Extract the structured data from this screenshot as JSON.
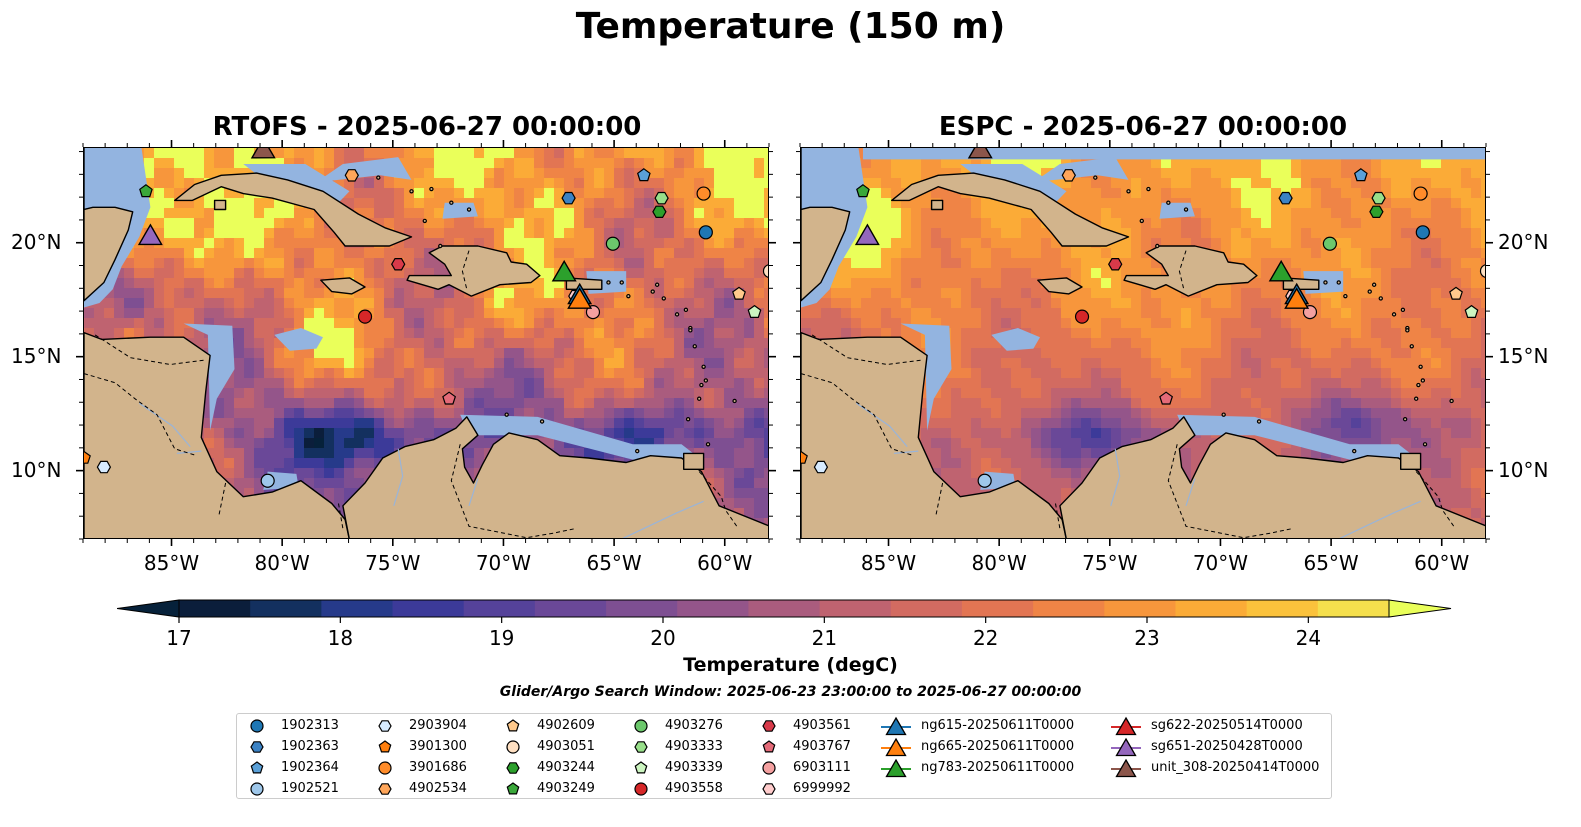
{
  "title": "Temperature (150 m)",
  "panels": [
    {
      "title": "RTOFS - 2025-06-27 00:00:00"
    },
    {
      "title": "ESPC - 2025-06-27 00:00:00"
    }
  ],
  "lon_ticks": [
    "85°W",
    "80°W",
    "75°W",
    "70°W",
    "65°W",
    "60°W"
  ],
  "lat_ticks": [
    "20°N",
    "15°N",
    "10°N"
  ],
  "colorbar": {
    "label": "Temperature (degC)",
    "ticks": [
      "17",
      "18",
      "19",
      "20",
      "21",
      "22",
      "23",
      "24"
    ],
    "min": 17,
    "max": 24.5,
    "colors": [
      "#0b1e3b",
      "#13305f",
      "#263a8a",
      "#3c3a99",
      "#55429a",
      "#6a4898",
      "#7e4f92",
      "#94558a",
      "#aa5c7e",
      "#bf6370",
      "#d26b61",
      "#e27553",
      "#ef8446",
      "#f7963c",
      "#fbab37",
      "#fbc23c",
      "#f5df4d"
    ],
    "extend_low": "#06213a",
    "extend_high": "#eaff5a"
  },
  "search_window": "Glider/Argo Search Window: 2025-06-23 23:00:00 to 2025-06-27 00:00:00",
  "colors": {
    "ocean_mask": "#93b4e0",
    "land": "#d2b48c",
    "deep": "#06213a"
  },
  "legend": {
    "argo": [
      {
        "id": "1902313",
        "marker": "circle",
        "color": "#1f77b4"
      },
      {
        "id": "1902363",
        "marker": "hexagon",
        "color": "#3b82c4"
      },
      {
        "id": "1902364",
        "marker": "pentagon",
        "color": "#5aa0d8"
      },
      {
        "id": "1902521",
        "marker": "circle",
        "color": "#9ec7ea"
      },
      {
        "id": "2903904",
        "marker": "hexagon",
        "color": "#d7ebff"
      },
      {
        "id": "3901300",
        "marker": "pentagon",
        "color": "#ff7f0e"
      },
      {
        "id": "3901686",
        "marker": "circle",
        "color": "#ff8c2a"
      },
      {
        "id": "4902534",
        "marker": "hexagon",
        "color": "#ffa65a"
      },
      {
        "id": "4902609",
        "marker": "pentagon",
        "color": "#ffc98c"
      },
      {
        "id": "4903051",
        "marker": "circle",
        "color": "#ffe0c2"
      },
      {
        "id": "4903244",
        "marker": "hexagon",
        "color": "#2ca02c"
      },
      {
        "id": "4903249",
        "marker": "pentagon",
        "color": "#3aa83a"
      },
      {
        "id": "4903276",
        "marker": "circle",
        "color": "#6cc86c"
      },
      {
        "id": "4903333",
        "marker": "hexagon",
        "color": "#98df8a"
      },
      {
        "id": "4903339",
        "marker": "pentagon",
        "color": "#ccf5c0"
      },
      {
        "id": "4903558",
        "marker": "circle",
        "color": "#d62728"
      },
      {
        "id": "4903561",
        "marker": "hexagon",
        "color": "#d83a4a"
      },
      {
        "id": "4903767",
        "marker": "pentagon",
        "color": "#e46a78"
      },
      {
        "id": "6903111",
        "marker": "circle",
        "color": "#f4a0a0"
      },
      {
        "id": "6999992",
        "marker": "hexagon",
        "color": "#ffcccc"
      }
    ],
    "gliders": [
      {
        "id": "ng615-20250611T0000",
        "color": "#1f77b4"
      },
      {
        "id": "ng665-20250611T0000",
        "color": "#ff7f0e"
      },
      {
        "id": "ng783-20250611T0000",
        "color": "#2ca02c"
      },
      {
        "id": "sg622-20250514T0000",
        "color": "#d62728"
      },
      {
        "id": "sg651-20250428T0000",
        "color": "#9467bd"
      },
      {
        "id": "unit_308-20250414T0000",
        "color": "#8c564b"
      }
    ]
  },
  "map_extent": {
    "lon_min": -89,
    "lon_max": -58,
    "lat_min": 7,
    "lat_max": 24.2
  },
  "observations": [
    {
      "id": "1902313",
      "lon": -60.9,
      "lat": 20.5
    },
    {
      "id": "1902363",
      "lon": -67.1,
      "lat": 22.0
    },
    {
      "id": "1902364",
      "lon": -63.7,
      "lat": 23.0
    },
    {
      "id": "1902521",
      "lon": -80.7,
      "lat": 9.6
    },
    {
      "id": "2903904",
      "lon": -88.1,
      "lat": 10.2
    },
    {
      "id": "3901300",
      "lon": -89.0,
      "lat": 10.6
    },
    {
      "id": "3901686",
      "lon": -61.0,
      "lat": 22.2
    },
    {
      "id": "4902534",
      "lon": -76.9,
      "lat": 23.0
    },
    {
      "id": "4902609",
      "lon": -59.4,
      "lat": 17.8
    },
    {
      "id": "4903051",
      "lon": -58.0,
      "lat": 18.8
    },
    {
      "id": "4903244",
      "lon": -63.0,
      "lat": 21.4
    },
    {
      "id": "4903249",
      "lon": -86.2,
      "lat": 22.3
    },
    {
      "id": "4903276",
      "lon": -65.1,
      "lat": 20.0
    },
    {
      "id": "4903333",
      "lon": -62.9,
      "lat": 22.0
    },
    {
      "id": "4903339",
      "lon": -58.7,
      "lat": 17.0
    },
    {
      "id": "4903558",
      "lon": -76.3,
      "lat": 16.8
    },
    {
      "id": "4903561",
      "lon": -74.8,
      "lat": 19.1
    },
    {
      "id": "4903767",
      "lon": -72.5,
      "lat": 13.2
    },
    {
      "id": "6903111",
      "lon": -66.0,
      "lat": 17.0
    },
    {
      "id": "6999992",
      "lon": -66.8,
      "lat": 17.7
    },
    {
      "id": "ng615-20250611T0000",
      "lon": -66.6,
      "lat": 17.8
    },
    {
      "id": "ng665-20250611T0000",
      "lon": -66.6,
      "lat": 17.6
    },
    {
      "id": "ng783-20250611T0000",
      "lon": -67.3,
      "lat": 18.8
    },
    {
      "id": "sg651-20250428T0000",
      "lon": -86.0,
      "lat": 20.4
    },
    {
      "id": "unit_308-20250414T0000",
      "lon": -80.9,
      "lat": 24.2
    }
  ]
}
